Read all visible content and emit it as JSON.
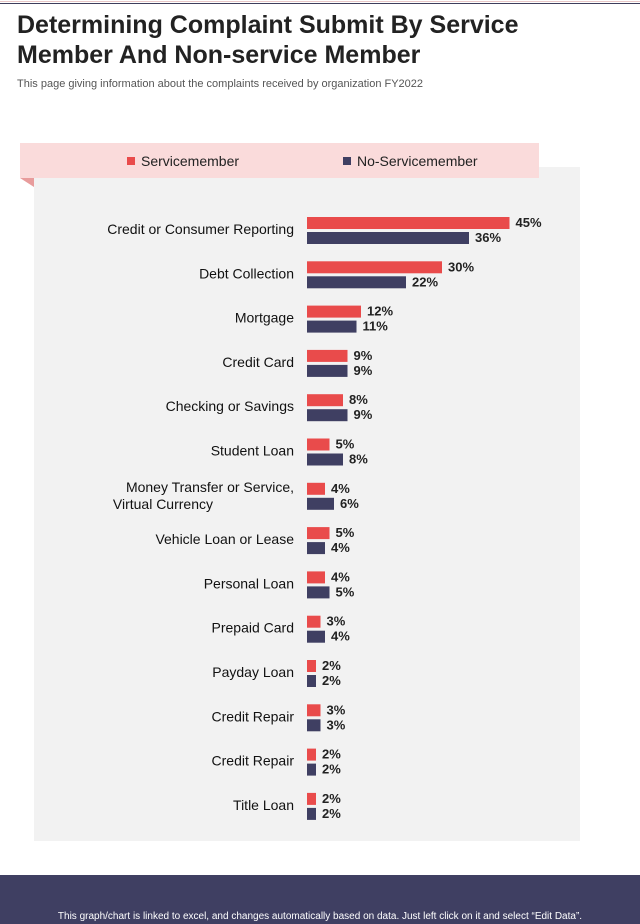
{
  "header": {
    "title": "Determining Complaint Submit By Service Member And Non-service Member",
    "subtitle": "This page giving information about the complaints received  by organization FY2022"
  },
  "colors": {
    "servicemember": "#e94b4b",
    "non_servicemember": "#3f3f62"
  },
  "chart_data": {
    "type": "bar",
    "orientation": "horizontal",
    "categories": [
      "Credit or Consumer Reporting",
      "Debt Collection",
      "Mortgage",
      "Credit Card",
      "Checking or Savings",
      "Student Loan",
      "Money Transfer or Service,Virtual Currency",
      "Vehicle Loan or Lease",
      "Personal Loan",
      "Prepaid Card",
      "Payday Loan",
      "Credit Repair",
      "Credit Repair",
      "Title Loan"
    ],
    "series": [
      {
        "name": "Servicemember",
        "values": [
          45,
          30,
          12,
          9,
          8,
          5,
          4,
          5,
          4,
          3,
          2,
          3,
          2,
          2
        ]
      },
      {
        "name": "No-Servicemember",
        "values": [
          36,
          22,
          11,
          9,
          9,
          8,
          6,
          4,
          5,
          4,
          2,
          3,
          2,
          2
        ]
      }
    ],
    "value_suffix": "%",
    "legend_position": "top",
    "grid": false
  },
  "footer": {
    "note": "This graph/chart is linked to excel,  and changes automatically based on data. Just left click on it and select “Edit Data”."
  }
}
